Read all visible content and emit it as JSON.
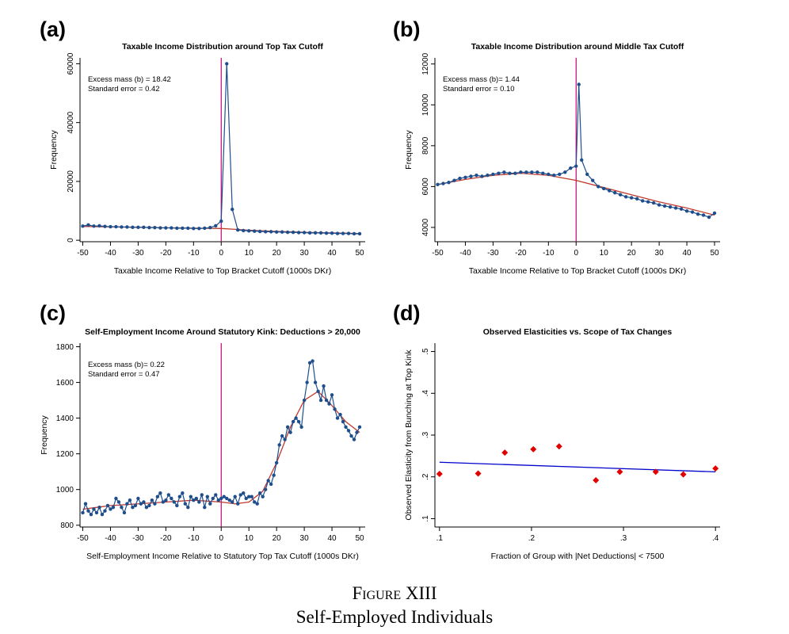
{
  "figure": {
    "caption_label": "Figure XIII",
    "caption_title": "Self-Employed Individuals"
  },
  "colors": {
    "data_line": "#1f4e8c",
    "data_point": "#1f4e8c",
    "fit_line": "#c0392b",
    "cutoff_line": "#c0007a",
    "scatter_point": "#e00000",
    "regression_line": "#0000cc"
  },
  "chart_data": [
    {
      "panel": "(a)",
      "type": "line",
      "title": "Taxable Income Distribution around Top Tax Cutoff",
      "xlabel": "Taxable Income Relative to Top Bracket Cutoff (1000s DKr)",
      "ylabel": "Frequency",
      "xlim": [
        -51,
        52
      ],
      "ylim": [
        -500,
        62000
      ],
      "xticks": [
        -50,
        -40,
        -30,
        -20,
        -10,
        0,
        10,
        20,
        30,
        40,
        50
      ],
      "yticks": [
        0,
        20000,
        40000,
        60000
      ],
      "yticks_rotated": true,
      "annotation": [
        "Excess mass (b) = 18.42",
        "Standard error = 0.42"
      ],
      "cutoff": 0,
      "x": [
        -50,
        -48,
        -46,
        -44,
        -42,
        -40,
        -38,
        -36,
        -34,
        -32,
        -30,
        -28,
        -26,
        -24,
        -22,
        -20,
        -18,
        -16,
        -14,
        -12,
        -10,
        -8,
        -6,
        -4,
        -2,
        0,
        2,
        4,
        6,
        8,
        10,
        12,
        14,
        16,
        18,
        20,
        22,
        24,
        26,
        28,
        30,
        32,
        34,
        36,
        38,
        40,
        42,
        44,
        46,
        48,
        50
      ],
      "series": [
        {
          "name": "",
          "values": [
            4800,
            5200,
            4800,
            4900,
            4700,
            4600,
            4600,
            4500,
            4500,
            4400,
            4400,
            4400,
            4300,
            4300,
            4200,
            4200,
            4200,
            4100,
            4100,
            4100,
            4000,
            4000,
            4100,
            4300,
            4900,
            6500,
            60000,
            10500,
            3500,
            3300,
            3200,
            3100,
            3000,
            2900,
            2900,
            2800,
            2800,
            2700,
            2700,
            2600,
            2600,
            2500,
            2500,
            2500,
            2400,
            2400,
            2300,
            2300,
            2300,
            2200,
            2200
          ]
        }
      ],
      "fit_x": [
        -50,
        -40,
        -30,
        -20,
        -10,
        -5,
        0,
        5,
        10,
        20,
        30,
        40,
        50
      ],
      "fit_y": [
        4700,
        4550,
        4400,
        4250,
        4100,
        4050,
        4000,
        3700,
        3400,
        3000,
        2700,
        2500,
        2300
      ]
    },
    {
      "panel": "(b)",
      "type": "line",
      "title": "Taxable Income Distribution around Middle Tax Cutoff",
      "xlabel": "Taxable Income Relative to Top Bracket Cutoff (1000s DKr)",
      "ylabel": "Frequency",
      "xlim": [
        -51,
        52
      ],
      "ylim": [
        3300,
        12300
      ],
      "xticks": [
        -50,
        -40,
        -30,
        -20,
        -10,
        0,
        10,
        20,
        30,
        40,
        50
      ],
      "yticks": [
        4000,
        6000,
        8000,
        10000,
        12000
      ],
      "yticks_rotated": true,
      "annotation": [
        "Excess mass (b)= 1.44",
        "Standard error = 0.10"
      ],
      "cutoff": 0,
      "x": [
        -50,
        -48,
        -46,
        -44,
        -42,
        -40,
        -38,
        -36,
        -34,
        -32,
        -30,
        -28,
        -26,
        -24,
        -22,
        -20,
        -18,
        -16,
        -14,
        -12,
        -10,
        -8,
        -6,
        -4,
        -2,
        0,
        1,
        2,
        4,
        6,
        8,
        10,
        12,
        14,
        16,
        18,
        20,
        22,
        24,
        26,
        28,
        30,
        32,
        34,
        36,
        38,
        40,
        42,
        44,
        46,
        48,
        50
      ],
      "series": [
        {
          "name": "",
          "values": [
            6100,
            6150,
            6200,
            6300,
            6400,
            6450,
            6500,
            6550,
            6500,
            6550,
            6600,
            6650,
            6700,
            6650,
            6650,
            6700,
            6700,
            6700,
            6700,
            6650,
            6600,
            6550,
            6600,
            6700,
            6900,
            7000,
            11000,
            7300,
            6600,
            6300,
            6000,
            5900,
            5800,
            5700,
            5600,
            5500,
            5450,
            5400,
            5300,
            5250,
            5200,
            5100,
            5050,
            5000,
            4950,
            4900,
            4800,
            4750,
            4650,
            4600,
            4500,
            4700
          ]
        }
      ],
      "fit_x": [
        -50,
        -40,
        -30,
        -20,
        -10,
        0,
        10,
        20,
        30,
        40,
        50
      ],
      "fit_y": [
        6100,
        6350,
        6550,
        6650,
        6550,
        6300,
        5950,
        5600,
        5250,
        4950,
        4600
      ]
    },
    {
      "panel": "(c)",
      "type": "line",
      "title": "Self-Employment Income Around Statutory Kink: Deductions > 20,000",
      "xlabel": "Self-Employment Income Relative to Statutory Top Tax Cutoff (1000s DKr)",
      "ylabel": "Frequency",
      "xlim": [
        -51,
        52
      ],
      "ylim": [
        790,
        1820
      ],
      "xticks": [
        -50,
        -40,
        -30,
        -20,
        -10,
        0,
        10,
        20,
        30,
        40,
        50
      ],
      "yticks": [
        800,
        1000,
        1200,
        1400,
        1600,
        1800
      ],
      "yticks_rotated": false,
      "annotation": [
        "Excess mass (b)= 0.22",
        "Standard error = 0.47"
      ],
      "cutoff": 0,
      "x": [
        -50,
        -49,
        -48,
        -47,
        -46,
        -45,
        -44,
        -43,
        -42,
        -41,
        -40,
        -39,
        -38,
        -37,
        -36,
        -35,
        -34,
        -33,
        -32,
        -31,
        -30,
        -29,
        -28,
        -27,
        -26,
        -25,
        -24,
        -23,
        -22,
        -21,
        -20,
        -19,
        -18,
        -17,
        -16,
        -15,
        -14,
        -13,
        -12,
        -11,
        -10,
        -9,
        -8,
        -7,
        -6,
        -5,
        -4,
        -3,
        -2,
        -1,
        0,
        1,
        2,
        3,
        4,
        5,
        6,
        7,
        8,
        9,
        10,
        11,
        12,
        13,
        14,
        15,
        16,
        17,
        18,
        19,
        20,
        21,
        22,
        23,
        24,
        25,
        26,
        27,
        28,
        29,
        30,
        31,
        32,
        33,
        34,
        35,
        36,
        37,
        38,
        39,
        40,
        41,
        42,
        43,
        44,
        45,
        46,
        47,
        48,
        49,
        50
      ],
      "series": [
        {
          "name": "",
          "values": [
            870,
            920,
            880,
            860,
            890,
            870,
            900,
            860,
            880,
            910,
            890,
            900,
            950,
            930,
            900,
            870,
            920,
            940,
            900,
            910,
            950,
            920,
            930,
            900,
            910,
            940,
            920,
            960,
            980,
            930,
            940,
            970,
            950,
            930,
            910,
            960,
            980,
            920,
            900,
            960,
            940,
            950,
            930,
            970,
            900,
            960,
            920,
            950,
            970,
            940,
            950,
            960,
            950,
            940,
            930,
            960,
            920,
            970,
            980,
            950,
            960,
            960,
            930,
            920,
            980,
            960,
            1000,
            1050,
            1030,
            1080,
            1150,
            1250,
            1300,
            1280,
            1350,
            1320,
            1380,
            1400,
            1380,
            1350,
            1500,
            1600,
            1710,
            1720,
            1600,
            1550,
            1500,
            1580,
            1500,
            1480,
            1530,
            1450,
            1400,
            1420,
            1380,
            1350,
            1330,
            1300,
            1280,
            1320,
            1350
          ]
        }
      ],
      "fit_x": [
        -50,
        -40,
        -30,
        -20,
        -10,
        0,
        5,
        10,
        15,
        20,
        25,
        30,
        35,
        40,
        45,
        50
      ],
      "fit_y": [
        890,
        910,
        920,
        930,
        940,
        930,
        920,
        930,
        990,
        1150,
        1350,
        1500,
        1550,
        1470,
        1380,
        1320
      ]
    },
    {
      "panel": "(d)",
      "type": "scatter",
      "title": "Observed Elasticities vs. Scope of Tax Changes",
      "xlabel": "Fraction of Group with |Net Deductions| < 7500",
      "ylabel": "Observed Elasticity  from Bunching at Top Kink",
      "xlim": [
        0.095,
        0.405
      ],
      "ylim": [
        0.08,
        0.52
      ],
      "xticks": [
        0.1,
        0.2,
        0.3,
        0.4
      ],
      "xtick_labels": [
        ".1",
        ".2",
        ".3",
        ".4"
      ],
      "yticks": [
        0.1,
        0.2,
        0.3,
        0.4,
        0.5
      ],
      "ytick_labels": [
        ".1",
        ".2",
        ".3",
        ".4",
        ".5"
      ],
      "yticks_rotated": true,
      "x": [
        0.1,
        0.142,
        0.171,
        0.202,
        0.23,
        0.27,
        0.296,
        0.335,
        0.365,
        0.4
      ],
      "series": [
        {
          "name": "",
          "values": [
            0.207,
            0.208,
            0.258,
            0.266,
            0.273,
            0.192,
            0.212,
            0.212,
            0.206,
            0.22
          ]
        }
      ],
      "fit_x": [
        0.1,
        0.4
      ],
      "fit_y": [
        0.235,
        0.212
      ]
    }
  ]
}
